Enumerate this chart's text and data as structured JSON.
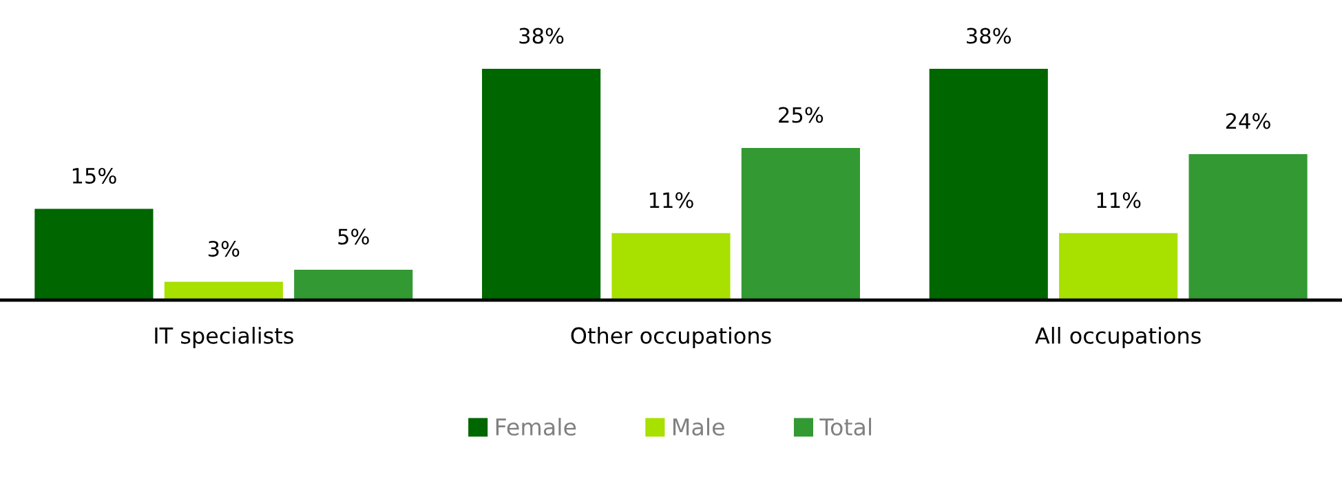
{
  "chart_data": {
    "type": "bar",
    "categories": [
      "IT specialists",
      "Other occupations",
      "All occupations"
    ],
    "series": [
      {
        "name": "Female",
        "color": "#006600",
        "values": [
          15,
          38,
          38
        ],
        "value_labels": [
          "15%",
          "38%",
          "38%"
        ]
      },
      {
        "name": "Male",
        "color": "#a8e000",
        "values": [
          3,
          11,
          11
        ],
        "value_labels": [
          "3%",
          "11%",
          "11%"
        ]
      },
      {
        "name": "Total",
        "color": "#339933",
        "values": [
          5,
          25,
          24
        ],
        "value_labels": [
          "5%",
          "25%",
          "24%"
        ]
      }
    ],
    "legend": "bottom",
    "grid": false
  }
}
